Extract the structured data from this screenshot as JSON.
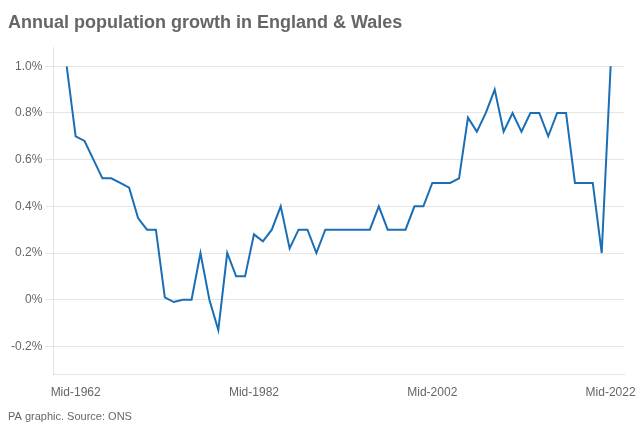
{
  "chart_data": {
    "type": "line",
    "title": "Annual population growth in England & Wales",
    "annotation": "PA graphic. Source: ONS",
    "color": "#1a6eb5",
    "marker": "none",
    "grid": "y",
    "legend": false,
    "x": [
      1961,
      1962,
      1963,
      1964,
      1965,
      1966,
      1967,
      1968,
      1969,
      1970,
      1971,
      1972,
      1973,
      1974,
      1975,
      1976,
      1977,
      1978,
      1979,
      1980,
      1981,
      1982,
      1983,
      1984,
      1985,
      1986,
      1987,
      1988,
      1989,
      1990,
      1991,
      1992,
      1993,
      1994,
      1995,
      1996,
      1997,
      1998,
      1999,
      2000,
      2001,
      2002,
      2003,
      2004,
      2005,
      2006,
      2007,
      2008,
      2009,
      2010,
      2011,
      2012,
      2013,
      2014,
      2015,
      2016,
      2017,
      2018,
      2019,
      2020,
      2021,
      2022
    ],
    "values": [
      1.0,
      0.7,
      0.68,
      0.6,
      0.52,
      0.52,
      0.5,
      0.48,
      0.35,
      0.3,
      0.3,
      0.01,
      -0.01,
      0.0,
      0.0,
      0.2,
      0.0,
      -0.13,
      0.2,
      0.1,
      0.1,
      0.28,
      0.25,
      0.3,
      0.4,
      0.22,
      0.3,
      0.3,
      0.2,
      0.3,
      0.3,
      0.3,
      0.3,
      0.3,
      0.3,
      0.4,
      0.3,
      0.3,
      0.3,
      0.4,
      0.4,
      0.5,
      0.5,
      0.5,
      0.52,
      0.78,
      0.72,
      0.8,
      0.9,
      0.72,
      0.8,
      0.72,
      0.8,
      0.8,
      0.7,
      0.8,
      0.8,
      0.5,
      0.5,
      0.5,
      0.2,
      1.0
    ],
    "xlim": [
      1959.5,
      2023.5
    ],
    "xticks": [
      {
        "value": 1962,
        "label": "Mid-1962"
      },
      {
        "value": 1982,
        "label": "Mid-1982"
      },
      {
        "value": 2002,
        "label": "Mid-2002"
      },
      {
        "value": 2022,
        "label": "Mid-2022"
      }
    ],
    "ylim": [
      -0.32,
      1.08
    ],
    "yticks": [
      {
        "value": -0.2,
        "label": "-0.2%"
      },
      {
        "value": 0.0,
        "label": "0%"
      },
      {
        "value": 0.2,
        "label": "0.2%"
      },
      {
        "value": 0.4,
        "label": "0.4%"
      },
      {
        "value": 0.6,
        "label": "0.6%"
      },
      {
        "value": 0.8,
        "label": "0.8%"
      },
      {
        "value": 1.0,
        "label": "1.0%"
      }
    ]
  }
}
